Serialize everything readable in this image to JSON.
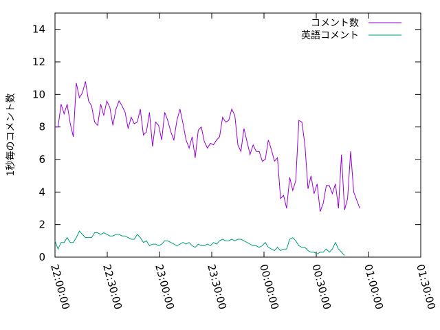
{
  "chart_data": {
    "type": "line",
    "ylabel": "1秒毎のコメント数",
    "xlabel": "",
    "title": "",
    "xlim": [
      "22:00:00",
      "01:30:00"
    ],
    "ylim": [
      0,
      15
    ],
    "x_ticks": [
      "22:00:00",
      "22:30:00",
      "23:00:00",
      "23:30:00",
      "00:00:00",
      "00:30:00",
      "01:00:00",
      "01:30:00"
    ],
    "y_ticks": [
      "0",
      "2",
      "4",
      "6",
      "8",
      "10",
      "12",
      "14"
    ],
    "legend_position": "top-right",
    "grid": false,
    "series": [
      {
        "name": "コメント数",
        "color": "#9400d3",
        "points": [
          [
            "22:00:00",
            8.0
          ],
          [
            "22:01:45",
            8.0
          ],
          [
            "22:03:30",
            9.4
          ],
          [
            "22:05:15",
            8.8
          ],
          [
            "22:07:00",
            9.4
          ],
          [
            "22:08:45",
            8.2
          ],
          [
            "22:10:30",
            7.4
          ],
          [
            "22:12:15",
            10.7
          ],
          [
            "22:14:00",
            9.8
          ],
          [
            "22:15:45",
            10.1
          ],
          [
            "22:17:30",
            10.8
          ],
          [
            "22:19:15",
            9.6
          ],
          [
            "22:21:00",
            9.3
          ],
          [
            "22:22:45",
            8.3
          ],
          [
            "22:24:30",
            8.1
          ],
          [
            "22:26:15",
            9.4
          ],
          [
            "22:28:00",
            8.7
          ],
          [
            "22:29:45",
            9.6
          ],
          [
            "22:31:30",
            9.2
          ],
          [
            "22:33:15",
            8.1
          ],
          [
            "22:35:00",
            9.1
          ],
          [
            "22:36:45",
            9.6
          ],
          [
            "22:38:30",
            9.3
          ],
          [
            "22:40:15",
            8.9
          ],
          [
            "22:42:00",
            7.9
          ],
          [
            "22:43:45",
            8.6
          ],
          [
            "22:45:30",
            8.2
          ],
          [
            "22:47:15",
            8.3
          ],
          [
            "22:49:00",
            9.1
          ],
          [
            "22:50:45",
            7.5
          ],
          [
            "22:52:30",
            7.7
          ],
          [
            "22:54:15",
            8.9
          ],
          [
            "22:56:00",
            6.8
          ],
          [
            "22:57:45",
            8.3
          ],
          [
            "22:59:30",
            8.1
          ],
          [
            "23:01:15",
            7.2
          ],
          [
            "23:03:00",
            8.9
          ],
          [
            "23:04:45",
            8.4
          ],
          [
            "23:06:30",
            7.7
          ],
          [
            "23:08:15",
            7.2
          ],
          [
            "23:10:00",
            8.4
          ],
          [
            "23:11:45",
            9.1
          ],
          [
            "23:13:30",
            8.2
          ],
          [
            "23:15:15",
            7.2
          ],
          [
            "23:17:00",
            6.7
          ],
          [
            "23:18:45",
            7.4
          ],
          [
            "23:20:30",
            6.1
          ],
          [
            "23:22:15",
            7.8
          ],
          [
            "23:24:00",
            8.0
          ],
          [
            "23:25:45",
            7.1
          ],
          [
            "23:27:30",
            6.7
          ],
          [
            "23:29:15",
            7.0
          ],
          [
            "23:31:00",
            6.9
          ],
          [
            "23:32:45",
            7.2
          ],
          [
            "23:34:30",
            7.4
          ],
          [
            "23:36:15",
            8.6
          ],
          [
            "23:38:00",
            8.3
          ],
          [
            "23:39:45",
            8.4
          ],
          [
            "23:41:30",
            9.1
          ],
          [
            "23:43:15",
            8.7
          ],
          [
            "23:45:00",
            6.9
          ],
          [
            "23:46:45",
            6.5
          ],
          [
            "23:48:30",
            7.9
          ],
          [
            "23:50:15",
            7.1
          ],
          [
            "23:52:00",
            6.3
          ],
          [
            "23:53:45",
            6.9
          ],
          [
            "23:55:30",
            6.5
          ],
          [
            "23:57:15",
            6.5
          ],
          [
            "23:59:00",
            5.9
          ],
          [
            "00:00:45",
            6.0
          ],
          [
            "00:02:30",
            7.2
          ],
          [
            "00:04:15",
            6.6
          ],
          [
            "00:06:00",
            5.9
          ],
          [
            "00:07:45",
            6.1
          ],
          [
            "00:09:30",
            3.6
          ],
          [
            "00:11:15",
            3.8
          ],
          [
            "00:13:00",
            3.0
          ],
          [
            "00:14:45",
            4.9
          ],
          [
            "00:16:30",
            4.1
          ],
          [
            "00:18:15",
            4.7
          ],
          [
            "00:20:00",
            8.4
          ],
          [
            "00:21:45",
            8.3
          ],
          [
            "00:23:30",
            6.9
          ],
          [
            "00:25:15",
            4.2
          ],
          [
            "00:27:00",
            5.0
          ],
          [
            "00:28:45",
            3.9
          ],
          [
            "00:30:30",
            4.5
          ],
          [
            "00:32:15",
            2.8
          ],
          [
            "00:34:00",
            3.3
          ],
          [
            "00:35:45",
            4.4
          ],
          [
            "00:37:30",
            4.4
          ],
          [
            "00:39:15",
            3.9
          ],
          [
            "00:41:00",
            4.5
          ],
          [
            "00:42:45",
            3.0
          ],
          [
            "00:44:30",
            6.3
          ],
          [
            "00:46:15",
            2.9
          ],
          [
            "00:48:00",
            3.6
          ],
          [
            "00:49:45",
            6.5
          ],
          [
            "00:51:30",
            4.0
          ],
          [
            "00:53:15",
            3.5
          ],
          [
            "00:55:00",
            3.0
          ]
        ]
      },
      {
        "name": "英語コメント",
        "color": "#009e73",
        "points": [
          [
            "22:00:00",
            1.0
          ],
          [
            "22:01:45",
            0.5
          ],
          [
            "22:03:30",
            0.9
          ],
          [
            "22:05:15",
            0.9
          ],
          [
            "22:07:00",
            1.2
          ],
          [
            "22:08:45",
            0.9
          ],
          [
            "22:10:30",
            0.9
          ],
          [
            "22:12:15",
            1.2
          ],
          [
            "22:14:00",
            1.6
          ],
          [
            "22:15:45",
            1.4
          ],
          [
            "22:17:30",
            1.2
          ],
          [
            "22:19:15",
            1.2
          ],
          [
            "22:21:00",
            1.2
          ],
          [
            "22:22:45",
            1.5
          ],
          [
            "22:24:30",
            1.5
          ],
          [
            "22:26:15",
            1.4
          ],
          [
            "22:28:00",
            1.5
          ],
          [
            "22:29:45",
            1.4
          ],
          [
            "22:31:30",
            1.3
          ],
          [
            "22:33:15",
            1.3
          ],
          [
            "22:35:00",
            1.4
          ],
          [
            "22:36:45",
            1.4
          ],
          [
            "22:38:30",
            1.3
          ],
          [
            "22:40:15",
            1.3
          ],
          [
            "22:42:00",
            1.2
          ],
          [
            "22:43:45",
            1.1
          ],
          [
            "22:45:30",
            1.1
          ],
          [
            "22:47:15",
            1.4
          ],
          [
            "22:49:00",
            1.2
          ],
          [
            "22:50:45",
            0.9
          ],
          [
            "22:52:30",
            1.0
          ],
          [
            "22:54:15",
            0.7
          ],
          [
            "22:56:00",
            0.8
          ],
          [
            "22:57:45",
            0.8
          ],
          [
            "22:59:30",
            0.7
          ],
          [
            "23:01:15",
            0.8
          ],
          [
            "23:03:00",
            1.0
          ],
          [
            "23:04:45",
            1.0
          ],
          [
            "23:06:30",
            0.9
          ],
          [
            "23:08:15",
            0.8
          ],
          [
            "23:10:00",
            0.7
          ],
          [
            "23:11:45",
            0.8
          ],
          [
            "23:13:30",
            0.9
          ],
          [
            "23:15:15",
            0.8
          ],
          [
            "23:17:00",
            0.9
          ],
          [
            "23:18:45",
            0.7
          ],
          [
            "23:20:30",
            0.6
          ],
          [
            "23:22:15",
            0.8
          ],
          [
            "23:24:00",
            0.7
          ],
          [
            "23:25:45",
            0.7
          ],
          [
            "23:27:30",
            0.8
          ],
          [
            "23:29:15",
            0.7
          ],
          [
            "23:31:00",
            0.9
          ],
          [
            "23:32:45",
            0.8
          ],
          [
            "23:34:30",
            1.0
          ],
          [
            "23:36:15",
            1.1
          ],
          [
            "23:38:00",
            1.0
          ],
          [
            "23:39:45",
            1.0
          ],
          [
            "23:41:30",
            1.1
          ],
          [
            "23:43:15",
            1.0
          ],
          [
            "23:45:00",
            1.1
          ],
          [
            "23:46:45",
            1.1
          ],
          [
            "23:48:30",
            1.0
          ],
          [
            "23:50:15",
            0.9
          ],
          [
            "23:52:00",
            0.8
          ],
          [
            "23:53:45",
            0.7
          ],
          [
            "23:55:30",
            0.7
          ],
          [
            "23:57:15",
            0.6
          ],
          [
            "23:59:00",
            0.7
          ],
          [
            "00:00:45",
            0.9
          ],
          [
            "00:02:30",
            0.6
          ],
          [
            "00:04:15",
            0.5
          ],
          [
            "00:06:00",
            0.4
          ],
          [
            "00:07:45",
            0.6
          ],
          [
            "00:09:30",
            0.4
          ],
          [
            "00:11:15",
            0.5
          ],
          [
            "00:13:00",
            0.5
          ],
          [
            "00:14:45",
            1.1
          ],
          [
            "00:16:30",
            1.2
          ],
          [
            "00:18:15",
            1.0
          ],
          [
            "00:20:00",
            0.7
          ],
          [
            "00:21:45",
            0.6
          ],
          [
            "00:23:30",
            0.6
          ],
          [
            "00:25:15",
            0.4
          ],
          [
            "00:27:00",
            0.3
          ],
          [
            "00:28:45",
            0.3
          ],
          [
            "00:30:30",
            0.2
          ],
          [
            "00:32:15",
            0.3
          ],
          [
            "00:34:00",
            0.3
          ],
          [
            "00:35:45",
            0.5
          ],
          [
            "00:37:30",
            0.3
          ],
          [
            "00:39:15",
            0.5
          ],
          [
            "00:41:00",
            0.9
          ],
          [
            "00:42:45",
            0.5
          ],
          [
            "00:44:30",
            0.3
          ],
          [
            "00:46:15",
            0.1
          ]
        ]
      }
    ]
  }
}
